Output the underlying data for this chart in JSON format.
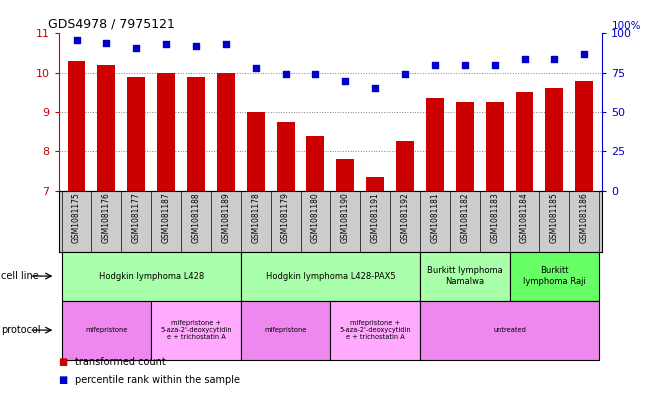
{
  "title": "GDS4978 / 7975121",
  "samples": [
    "GSM1081175",
    "GSM1081176",
    "GSM1081177",
    "GSM1081187",
    "GSM1081188",
    "GSM1081189",
    "GSM1081178",
    "GSM1081179",
    "GSM1081180",
    "GSM1081190",
    "GSM1081191",
    "GSM1081192",
    "GSM1081181",
    "GSM1081182",
    "GSM1081183",
    "GSM1081184",
    "GSM1081185",
    "GSM1081186"
  ],
  "bar_values": [
    10.3,
    10.2,
    9.9,
    10.0,
    9.9,
    10.0,
    9.0,
    8.75,
    8.4,
    7.8,
    7.35,
    8.25,
    9.35,
    9.25,
    9.25,
    9.5,
    9.6,
    9.8
  ],
  "dot_values": [
    96,
    94,
    91,
    93,
    92,
    93,
    78,
    74,
    74,
    70,
    65,
    74,
    80,
    80,
    80,
    84,
    84,
    87
  ],
  "ylim_left": [
    7,
    11
  ],
  "ylim_right": [
    0,
    100
  ],
  "yticks_left": [
    7,
    8,
    9,
    10,
    11
  ],
  "yticks_right": [
    0,
    25,
    50,
    75,
    100
  ],
  "bar_color": "#cc0000",
  "dot_color": "#0000cc",
  "grid_color": "#808080",
  "cell_line_groups": [
    {
      "label": "Hodgkin lymphoma L428",
      "start": 0,
      "end": 6,
      "color": "#aaffaa"
    },
    {
      "label": "Hodgkin lymphoma L428-PAX5",
      "start": 6,
      "end": 12,
      "color": "#aaffaa"
    },
    {
      "label": "Burkitt lymphoma\nNamalwa",
      "start": 12,
      "end": 15,
      "color": "#aaffaa"
    },
    {
      "label": "Burkitt\nlymphoma Raji",
      "start": 15,
      "end": 18,
      "color": "#66ff66"
    }
  ],
  "protocol_groups": [
    {
      "label": "mifepristone",
      "start": 0,
      "end": 3,
      "color": "#ee88ee"
    },
    {
      "label": "mifepristone +\n5-aza-2'-deoxycytidin\ne + trichostatin A",
      "start": 3,
      "end": 6,
      "color": "#ffaaff"
    },
    {
      "label": "mifepristone",
      "start": 6,
      "end": 9,
      "color": "#ee88ee"
    },
    {
      "label": "mifepristone +\n5-aza-2'-deoxycytidin\ne + trichostatin A",
      "start": 9,
      "end": 12,
      "color": "#ffaaff"
    },
    {
      "label": "untreated",
      "start": 12,
      "end": 18,
      "color": "#ee88ee"
    }
  ],
  "cell_line_label": "cell line",
  "protocol_label": "protocol",
  "legend_bar_label": "transformed count",
  "legend_dot_label": "percentile rank within the sample",
  "right_axis_color": "#0000cc",
  "left_axis_color": "#cc0000",
  "background_color": "#ffffff",
  "sample_bg_color": "#cccccc"
}
